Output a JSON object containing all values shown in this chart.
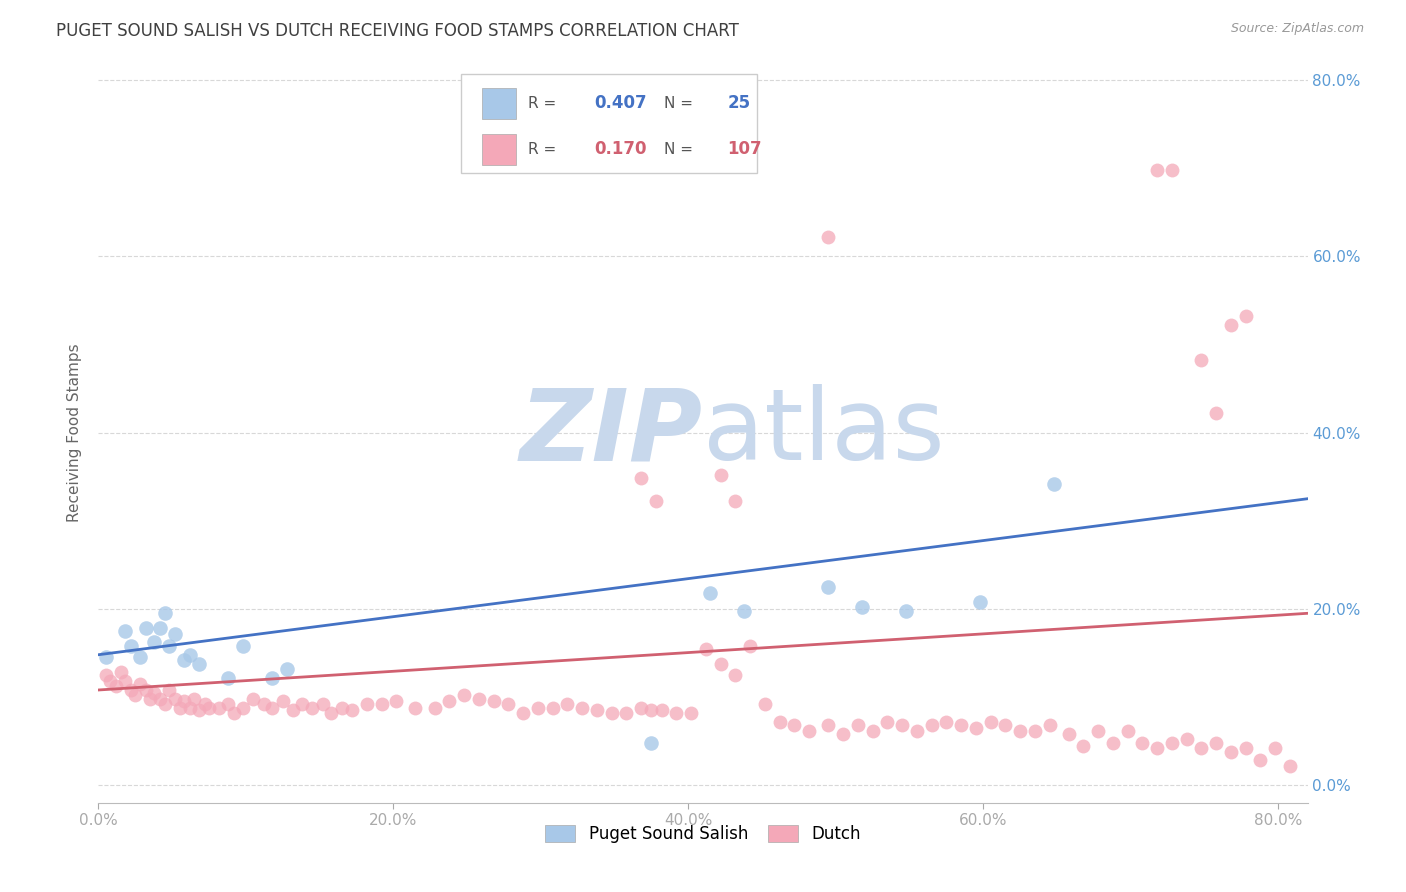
{
  "title": "PUGET SOUND SALISH VS DUTCH RECEIVING FOOD STAMPS CORRELATION CHART",
  "source": "Source: ZipAtlas.com",
  "ylabel": "Receiving Food Stamps",
  "xlim": [
    0.0,
    0.82
  ],
  "ylim": [
    -0.02,
    0.82
  ],
  "xticks": [
    0.0,
    0.2,
    0.4,
    0.6,
    0.8
  ],
  "xtick_labels": [
    "0.0%",
    "20.0%",
    "40.0%",
    "60.0%",
    "80.0%"
  ],
  "yticks": [
    0.0,
    0.2,
    0.4,
    0.6,
    0.8
  ],
  "ytick_labels": [
    "0.0%",
    "20.0%",
    "40.0%",
    "60.0%",
    "80.0%"
  ],
  "legend_labels": [
    "Puget Sound Salish",
    "Dutch"
  ],
  "blue_R": 0.407,
  "blue_N": 25,
  "pink_R": 0.17,
  "pink_N": 107,
  "blue_color": "#a8c8e8",
  "pink_color": "#f4a8b8",
  "blue_line_color": "#4472c4",
  "pink_line_color": "#d06070",
  "title_color": "#404040",
  "axis_color": "#5b9bd5",
  "grid_color": "#d8d8d8",
  "watermark_zip_color": "#c8d8ec",
  "watermark_atlas_color": "#c8d8ec",
  "background_color": "#ffffff",
  "blue_trend_x": [
    0.0,
    0.82
  ],
  "blue_trend_y": [
    0.148,
    0.325
  ],
  "pink_trend_x": [
    0.0,
    0.82
  ],
  "pink_trend_y": [
    0.108,
    0.195
  ],
  "blue_x": [
    0.005,
    0.018,
    0.022,
    0.028,
    0.032,
    0.038,
    0.042,
    0.045,
    0.048,
    0.052,
    0.058,
    0.062,
    0.068,
    0.088,
    0.098,
    0.118,
    0.128,
    0.375,
    0.415,
    0.438,
    0.495,
    0.518,
    0.548,
    0.598,
    0.648
  ],
  "blue_y": [
    0.145,
    0.175,
    0.158,
    0.145,
    0.178,
    0.162,
    0.178,
    0.195,
    0.158,
    0.172,
    0.142,
    0.148,
    0.138,
    0.122,
    0.158,
    0.122,
    0.132,
    0.048,
    0.218,
    0.198,
    0.225,
    0.202,
    0.198,
    0.208,
    0.342
  ],
  "pink_x": [
    0.005,
    0.008,
    0.012,
    0.015,
    0.018,
    0.022,
    0.025,
    0.028,
    0.032,
    0.035,
    0.038,
    0.042,
    0.045,
    0.048,
    0.052,
    0.055,
    0.058,
    0.062,
    0.065,
    0.068,
    0.072,
    0.075,
    0.082,
    0.088,
    0.092,
    0.098,
    0.105,
    0.112,
    0.118,
    0.125,
    0.132,
    0.138,
    0.145,
    0.152,
    0.158,
    0.165,
    0.172,
    0.182,
    0.192,
    0.202,
    0.215,
    0.228,
    0.238,
    0.248,
    0.258,
    0.268,
    0.278,
    0.288,
    0.298,
    0.308,
    0.318,
    0.328,
    0.338,
    0.348,
    0.358,
    0.368,
    0.375,
    0.382,
    0.392,
    0.402,
    0.412,
    0.422,
    0.432,
    0.442,
    0.452,
    0.462,
    0.472,
    0.482,
    0.495,
    0.505,
    0.515,
    0.525,
    0.535,
    0.545,
    0.555,
    0.565,
    0.575,
    0.585,
    0.595,
    0.605,
    0.615,
    0.625,
    0.635,
    0.645,
    0.658,
    0.668,
    0.678,
    0.688,
    0.698,
    0.708,
    0.718,
    0.728,
    0.738,
    0.748,
    0.758,
    0.768,
    0.778,
    0.788,
    0.798,
    0.808
  ],
  "pink_y": [
    0.125,
    0.118,
    0.112,
    0.128,
    0.118,
    0.108,
    0.102,
    0.115,
    0.108,
    0.098,
    0.105,
    0.098,
    0.092,
    0.108,
    0.098,
    0.088,
    0.095,
    0.088,
    0.098,
    0.085,
    0.092,
    0.088,
    0.088,
    0.092,
    0.082,
    0.088,
    0.098,
    0.092,
    0.088,
    0.095,
    0.085,
    0.092,
    0.088,
    0.092,
    0.082,
    0.088,
    0.085,
    0.092,
    0.092,
    0.095,
    0.088,
    0.088,
    0.095,
    0.102,
    0.098,
    0.095,
    0.092,
    0.082,
    0.088,
    0.088,
    0.092,
    0.088,
    0.085,
    0.082,
    0.082,
    0.088,
    0.085,
    0.085,
    0.082,
    0.082,
    0.155,
    0.138,
    0.125,
    0.158,
    0.092,
    0.072,
    0.068,
    0.062,
    0.068,
    0.058,
    0.068,
    0.062,
    0.072,
    0.068,
    0.062,
    0.068,
    0.072,
    0.068,
    0.065,
    0.072,
    0.068,
    0.062,
    0.062,
    0.068,
    0.058,
    0.045,
    0.062,
    0.048,
    0.062,
    0.048,
    0.042,
    0.048,
    0.052,
    0.042,
    0.048,
    0.038,
    0.042,
    0.028,
    0.042,
    0.022
  ],
  "pink_outlier_x": [
    0.368,
    0.378,
    0.422,
    0.432,
    0.495,
    0.718,
    0.728,
    0.748,
    0.758,
    0.768,
    0.778
  ],
  "pink_outlier_y": [
    0.348,
    0.322,
    0.352,
    0.322,
    0.622,
    0.698,
    0.698,
    0.482,
    0.422,
    0.522,
    0.532
  ]
}
